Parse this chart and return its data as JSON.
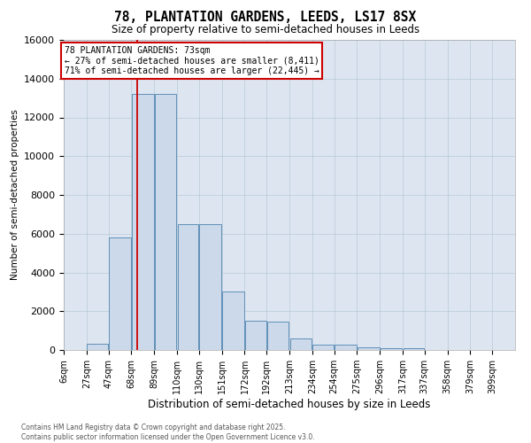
{
  "title_line1": "78, PLANTATION GARDENS, LEEDS, LS17 8SX",
  "title_line2": "Size of property relative to semi-detached houses in Leeds",
  "xlabel": "Distribution of semi-detached houses by size in Leeds",
  "ylabel": "Number of semi-detached properties",
  "bar_facecolor": "#ccd9ea",
  "bar_edgecolor": "#6090b8",
  "grid_color": "#b8c8d8",
  "axes_facecolor": "#dde6f0",
  "vline_x": 73,
  "vline_color": "#cc0000",
  "annotation_text": "78 PLANTATION GARDENS: 73sqm\n← 27% of semi-detached houses are smaller (8,411)\n71% of semi-detached houses are larger (22,445) →",
  "annotation_box_edgecolor": "#cc0000",
  "footnote": "Contains HM Land Registry data © Crown copyright and database right 2025.\nContains public sector information licensed under the Open Government Licence v3.0.",
  "bins": [
    6,
    27,
    47,
    68,
    89,
    110,
    130,
    151,
    172,
    192,
    213,
    234,
    254,
    275,
    296,
    317,
    337,
    358,
    379,
    399,
    420
  ],
  "counts": [
    0,
    300,
    5800,
    13200,
    13200,
    6500,
    6500,
    3000,
    1500,
    1480,
    580,
    270,
    260,
    150,
    100,
    90,
    0,
    0,
    0,
    0
  ],
  "ylim_max": 16000,
  "yticks": [
    0,
    2000,
    4000,
    6000,
    8000,
    10000,
    12000,
    14000,
    16000
  ]
}
